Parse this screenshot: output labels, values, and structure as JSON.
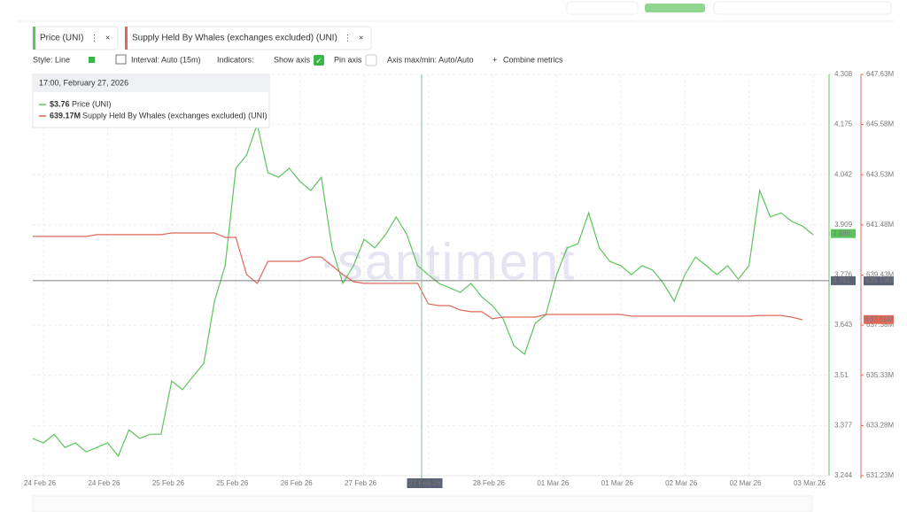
{
  "toolbar": {
    "style": "Style: Line",
    "interval": "Interval: Auto (15m)",
    "indicators": "Indicators:",
    "show_axis": "Show axis",
    "pin_axis": "Pin axis",
    "axis_minmax": "Axis max/min: Auto/Auto",
    "combine": "Combine metrics"
  },
  "tooltip": {
    "time": "17:00, February 27, 2026",
    "rows": [
      "$3.76",
      "639.17M"
    ]
  },
  "watermark": "·santiment",
  "chart_data": {
    "type": "line",
    "categories": [
      null,
      "24 Feb 26",
      null,
      null,
      null,
      null,
      null,
      "24 Feb 26",
      null,
      null,
      null,
      null,
      null,
      "25 Feb 26",
      null,
      null,
      null,
      null,
      null,
      "25 Feb 26",
      null,
      null,
      null,
      null,
      null,
      "26 Feb 26",
      null,
      null,
      null,
      null,
      null,
      "27 Feb 26",
      null,
      null,
      null,
      null,
      null,
      "27 Feb 26",
      null,
      null,
      null,
      null,
      null,
      "28 Feb 26",
      null,
      null,
      null,
      null,
      null,
      "01 Mar 26",
      null,
      null,
      null,
      null,
      null,
      "01 Mar 26",
      null,
      null,
      null,
      null,
      null,
      "02 Mar 26",
      null,
      null,
      null,
      null,
      null,
      "02 Mar 26",
      null,
      null,
      null,
      null,
      null,
      "03 Mar 26"
    ],
    "series": [
      {
        "name": "Price (UNI)",
        "color": "#5cc45c",
        "last_value": 3.886,
        "values": [
          3.343,
          3.331,
          3.354,
          3.319,
          3.331,
          3.307,
          3.319,
          3.331,
          3.296,
          3.366,
          3.343,
          3.354,
          3.354,
          3.495,
          3.472,
          3.507,
          3.542,
          3.707,
          3.801,
          4.059,
          4.094,
          4.176,
          4.047,
          4.035,
          4.059,
          4.024,
          4.0,
          4.035,
          3.848,
          3.754,
          3.801,
          3.871,
          3.848,
          3.883,
          3.93,
          3.883,
          3.801,
          3.777,
          3.754,
          3.742,
          3.73,
          3.754,
          3.718,
          3.695,
          3.66,
          3.589,
          3.566,
          3.648,
          3.671,
          3.777,
          3.848,
          3.859,
          3.941,
          3.848,
          3.812,
          3.801,
          3.777,
          3.801,
          3.789,
          3.754,
          3.707,
          3.777,
          3.824,
          3.801,
          3.777,
          3.801,
          3.765,
          3.801,
          4.0,
          3.93,
          3.941,
          3.918,
          3.906,
          3.883
        ]
      },
      {
        "name": "Supply Held By Whales (exchanges excluded) (UNI)",
        "color": "#e0685a",
        "axis": "y2",
        "last_value": {
          "value": 637.61,
          "label": "637.61M"
        },
        "values": [
          641.01,
          641.01,
          641.01,
          641.01,
          641.01,
          641.01,
          641.08,
          641.08,
          641.08,
          641.08,
          641.08,
          641.08,
          641.08,
          641.15,
          641.15,
          641.15,
          641.15,
          641.15,
          640.97,
          640.97,
          639.45,
          639.09,
          639.99,
          639.99,
          639.99,
          639.99,
          640.17,
          640.17,
          639.81,
          639.45,
          639.16,
          639.09,
          639.09,
          639.09,
          639.09,
          639.09,
          639.09,
          638.25,
          638.18,
          638.18,
          638.0,
          637.93,
          637.93,
          637.64,
          637.71,
          637.71,
          637.71,
          637.71,
          637.82,
          637.82,
          637.82,
          637.82,
          637.82,
          637.82,
          637.82,
          637.82,
          637.75,
          637.75,
          637.75,
          637.75,
          637.75,
          637.75,
          637.75,
          637.75,
          637.75,
          637.75,
          637.75,
          637.75,
          637.78,
          637.78,
          637.78,
          637.71,
          637.6,
          null
        ]
      }
    ],
    "crosshair": {
      "y": 3.761,
      "y2": {
        "value": 639.19,
        "label": "639.19M"
      }
    },
    "ylim": [
      3.244,
      4.308
    ],
    "yticks": [
      3.244,
      3.377,
      3.51,
      3.643,
      3.776,
      3.909,
      4.042,
      4.175,
      4.308
    ],
    "y2lim": [
      631.23,
      647.63
    ],
    "y2ticks": [
      {
        "value": 631.23,
        "label": "631.23M"
      },
      {
        "value": 633.28,
        "label": "633.28M"
      },
      {
        "value": 635.33,
        "label": "635.33M"
      },
      {
        "value": 637.38,
        "label": "637.38M"
      },
      {
        "value": 639.43,
        "label": "639.43M"
      },
      {
        "value": 641.48,
        "label": "641.48M"
      },
      {
        "value": 643.53,
        "label": "643.53M"
      },
      {
        "value": 645.58,
        "label": "645.58M"
      },
      {
        "value": 647.63,
        "label": "647.63M"
      }
    ],
    "grid": true
  }
}
